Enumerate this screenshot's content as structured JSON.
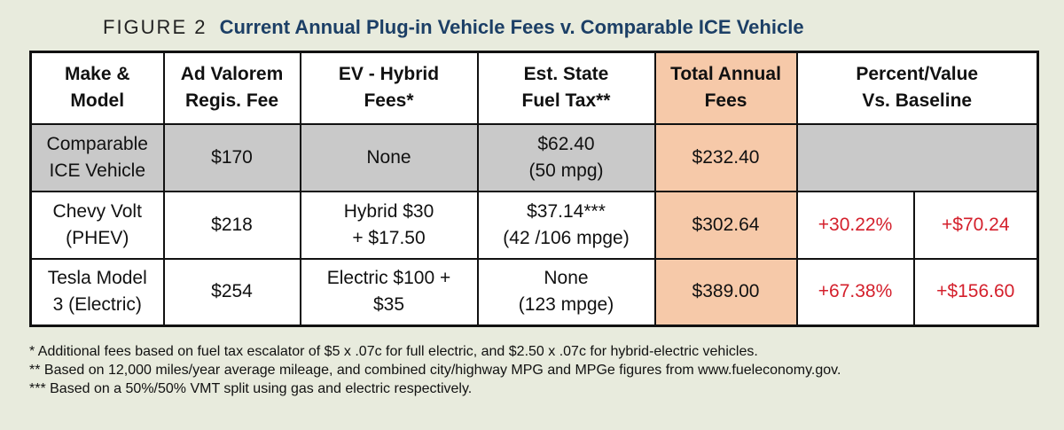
{
  "figure": {
    "label": "FIGURE 2",
    "caption": "Current Annual Plug-in Vehicle Fees v. Comparable ICE Vehicle"
  },
  "headers": {
    "col1": [
      "Make &",
      "Model"
    ],
    "col2": [
      "Ad Valorem",
      "Regis. Fee"
    ],
    "col3": [
      "EV - Hybrid",
      "Fees*"
    ],
    "col4": [
      "Est. State",
      "Fuel Tax**"
    ],
    "col5": [
      "Total Annual",
      "Fees"
    ],
    "col6": [
      "Percent/Value",
      "Vs. Baseline"
    ]
  },
  "rows": [
    {
      "model": [
        "Comparable",
        "ICE Vehicle"
      ],
      "ad_valorem": "$170",
      "ev_fees": [
        "None"
      ],
      "fuel_tax": [
        "$62.40",
        "(50 mpg)"
      ],
      "total": "$232.40",
      "percent": "",
      "value": ""
    },
    {
      "model": [
        "Chevy Volt",
        "(PHEV)"
      ],
      "ad_valorem": "$218",
      "ev_fees": [
        "Hybrid $30",
        "+ $17.50"
      ],
      "fuel_tax": [
        "$37.14***",
        "(42 /106 mpge)"
      ],
      "total": "$302.64",
      "percent": "+30.22%",
      "value": "+$70.24"
    },
    {
      "model": [
        "Tesla Model",
        "3 (Electric)"
      ],
      "ad_valorem": "$254",
      "ev_fees": [
        "Electric $100 +",
        "$35"
      ],
      "fuel_tax": [
        "None",
        "(123 mpge)"
      ],
      "total": "$389.00",
      "percent": "+67.38%",
      "value": "+$156.60"
    }
  ],
  "footnotes": [
    "* Additional fees based on fuel tax escalator of $5 x .07c for full electric, and $2.50 x .07c for hybrid-electric vehicles.",
    "** Based on 12,000 miles/year average mileage, and combined city/highway MPG and MPGe figures from www.fueleconomy.gov.",
    "*** Based on a 50%/50% VMT split using gas and electric respectively."
  ],
  "colors": {
    "background": "#e8ebdd",
    "caption_blue": "#1c3f66",
    "baseline_row_gray": "#c9c9c9",
    "total_column_peach": "#f6c9a9",
    "increase_red": "#d4202c"
  }
}
